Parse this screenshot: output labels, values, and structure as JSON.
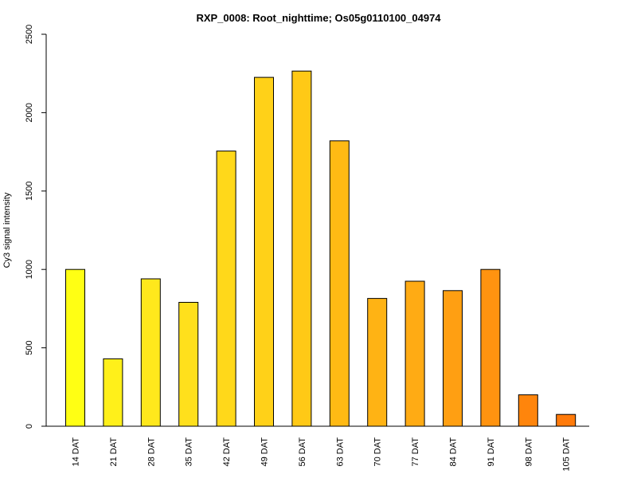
{
  "chart_data": {
    "type": "bar",
    "title": "RXP_0008: Root_nighttime; Os05g0110100_04974",
    "xlabel": "",
    "ylabel": "Cy3 signal intensity",
    "ylim": [
      0,
      2500
    ],
    "yticks": [
      0,
      500,
      1000,
      1500,
      2000,
      2500
    ],
    "grid": false,
    "categories": [
      "14 DAT",
      "21 DAT",
      "28 DAT",
      "35 DAT",
      "42 DAT",
      "49 DAT",
      "56 DAT",
      "63 DAT",
      "70 DAT",
      "77 DAT",
      "84 DAT",
      "91 DAT",
      "98 DAT",
      "105 DAT"
    ],
    "values": [
      1000,
      430,
      940,
      790,
      1755,
      2225,
      2265,
      1820,
      815,
      925,
      865,
      1000,
      200,
      75
    ],
    "colors": [
      "#FFFF14",
      "#FFF01A",
      "#FFE81C",
      "#FFE01C",
      "#FFD81A",
      "#FFD118",
      "#FFC916",
      "#FFBA14",
      "#FFB314",
      "#FFAB14",
      "#FF9F12",
      "#FF9310",
      "#FF850C",
      "#FF7A0A"
    ]
  }
}
